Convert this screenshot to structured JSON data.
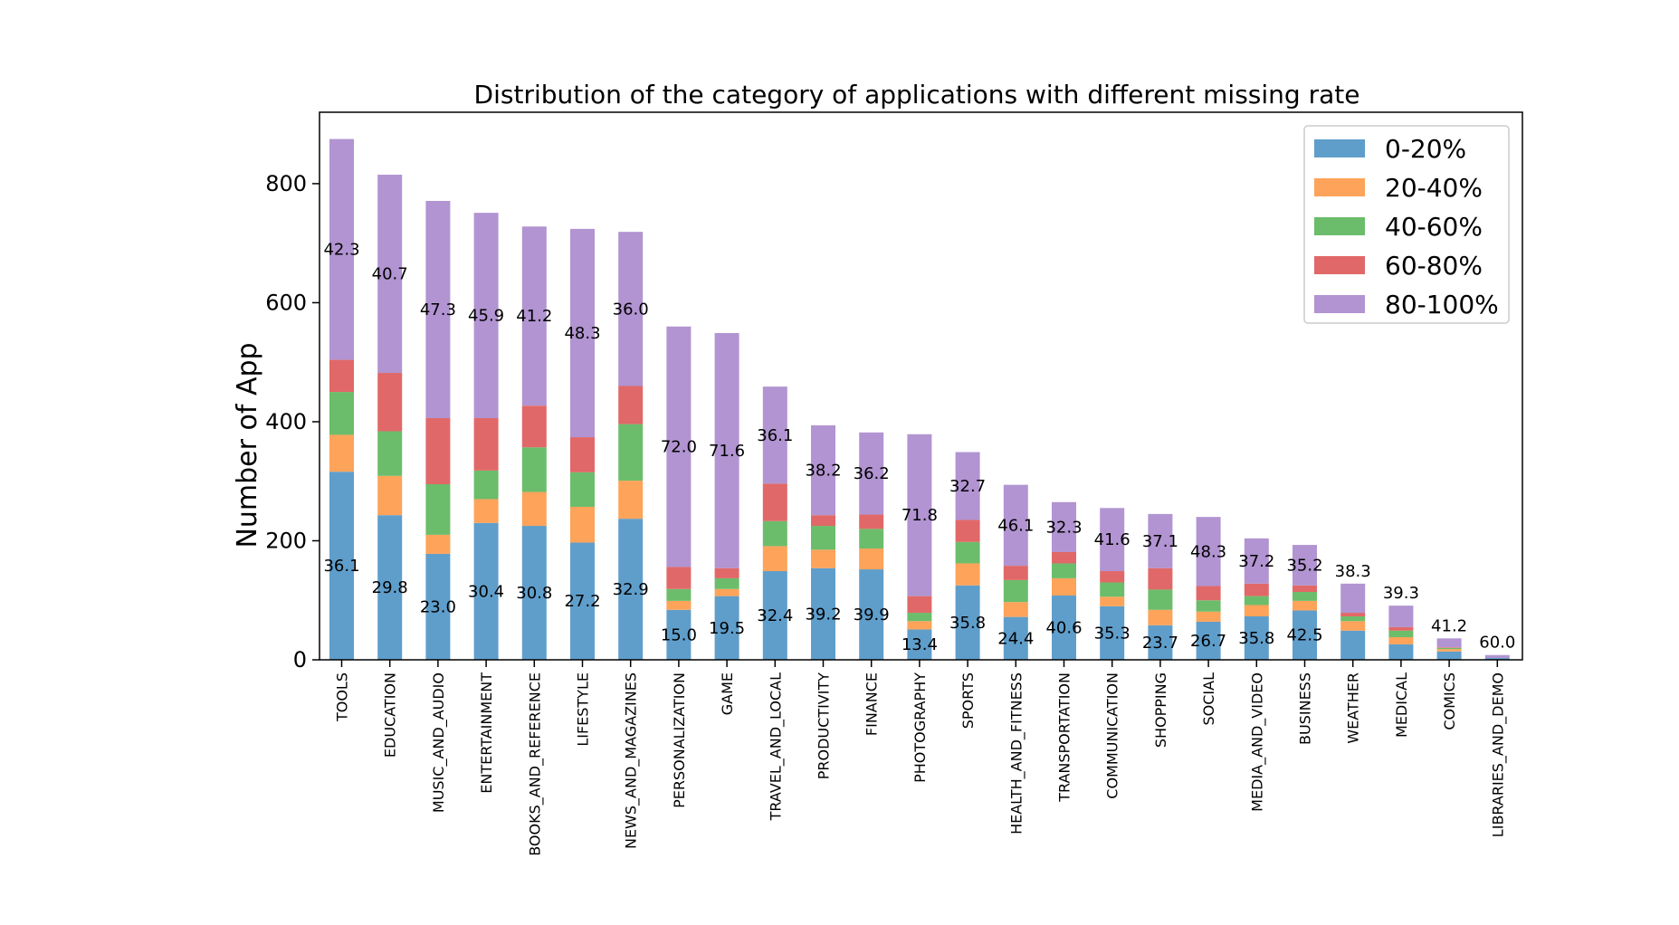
{
  "chart_data": {
    "type": "bar",
    "stacked": true,
    "title": "Distribution of the category of applications with different missing rate",
    "xlabel": "",
    "ylabel": "Number of App",
    "ylim": [
      0,
      920
    ],
    "yticks": [
      0,
      200,
      400,
      600,
      800
    ],
    "grid": false,
    "legend_position": "top-right",
    "categories": [
      "TOOLS",
      "EDUCATION",
      "MUSIC_AND_AUDIO",
      "ENTERTAINMENT",
      "BOOKS_AND_REFERENCE",
      "LIFESTYLE",
      "NEWS_AND_MAGAZINES",
      "PERSONALIZATION",
      "GAME",
      "TRAVEL_AND_LOCAL",
      "PRODUCTIVITY",
      "FINANCE",
      "PHOTOGRAPHY",
      "SPORTS",
      "HEALTH_AND_FITNESS",
      "TRANSPORTATION",
      "COMMUNICATION",
      "SHOPPING",
      "SOCIAL",
      "MEDIA_AND_VIDEO",
      "BUSINESS",
      "WEATHER",
      "MEDICAL",
      "COMICS",
      "LIBRARIES_AND_DEMO"
    ],
    "series": [
      {
        "name": "0-20%",
        "color": "#5f9ecb",
        "values": [
          316,
          243,
          178,
          230,
          225,
          197,
          237,
          84,
          107,
          149,
          154,
          152,
          51,
          125,
          72,
          108,
          90,
          58,
          64,
          73,
          83,
          49,
          26,
          14,
          3
        ]
      },
      {
        "name": "20-40%",
        "color": "#fda35a",
        "values": [
          62,
          66,
          32,
          40,
          57,
          60,
          64,
          15,
          12,
          42,
          31,
          35,
          14,
          37,
          25,
          29,
          16,
          26,
          17,
          19,
          16,
          16,
          12,
          4,
          0
        ]
      },
      {
        "name": "40-60%",
        "color": "#6bbd6b",
        "values": [
          72,
          75,
          85,
          48,
          75,
          58,
          95,
          20,
          18,
          42,
          40,
          33,
          14,
          36,
          37,
          25,
          24,
          34,
          19,
          15,
          15,
          8,
          11,
          2,
          0
        ]
      },
      {
        "name": "60-80%",
        "color": "#e16868",
        "values": [
          54,
          98,
          111,
          88,
          70,
          59,
          64,
          37,
          17,
          63,
          18,
          24,
          28,
          37,
          24,
          19,
          19,
          36,
          24,
          21,
          11,
          6,
          6,
          1,
          0
        ]
      },
      {
        "name": "80-100%",
        "color": "#b194d1",
        "values": [
          371,
          333,
          365,
          345,
          301,
          350,
          259,
          404,
          395,
          163,
          151,
          138,
          272,
          114,
          136,
          84,
          106,
          91,
          116,
          76,
          68,
          49,
          36,
          15,
          5
        ]
      }
    ],
    "bottom_labels": [
      "36.1",
      "29.8",
      "23.0",
      "30.4",
      "30.8",
      "27.2",
      "32.9",
      "15.0",
      "19.5",
      "32.4",
      "39.2",
      "39.9",
      "13.4",
      "35.8",
      "24.4",
      "40.6",
      "35.3",
      "23.7",
      "26.7",
      "35.8",
      "42.5",
      "",
      "",
      "",
      ""
    ],
    "top_labels": [
      "42.3",
      "40.7",
      "47.3",
      "45.9",
      "41.2",
      "48.3",
      "36.0",
      "72.0",
      "71.6",
      "36.1",
      "38.2",
      "36.2",
      "71.8",
      "32.7",
      "46.1",
      "32.3",
      "41.6",
      "37.1",
      "48.3",
      "37.2",
      "35.2",
      "38.3",
      "39.3",
      "41.2",
      "60.0"
    ]
  }
}
